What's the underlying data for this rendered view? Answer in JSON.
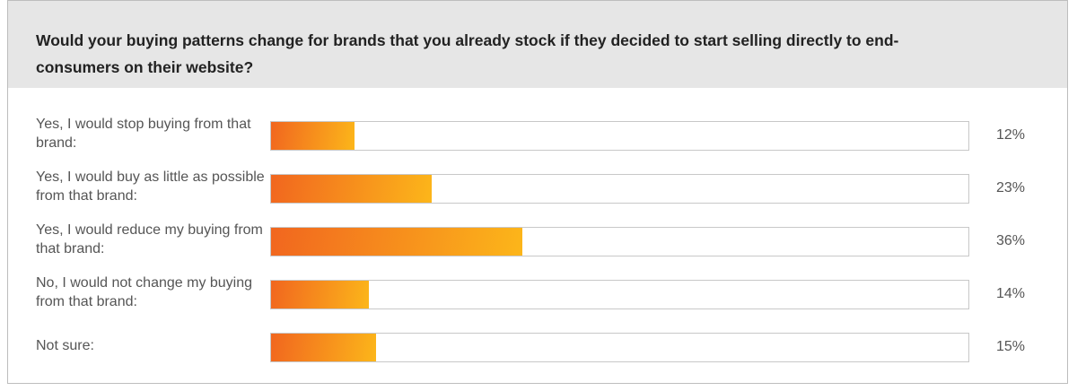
{
  "chart_data": {
    "type": "bar",
    "orientation": "horizontal",
    "title": "Would your buying patterns change for brands that you already stock if they decided to start selling directly to end-consumers on their website?",
    "categories": [
      "Yes, I would stop buying from that brand:",
      "Yes, I would buy as little as possible from that brand:",
      "Yes, I would reduce my buying from that brand:",
      "No, I would not change my buying from that brand:",
      "Not sure:"
    ],
    "values": [
      12,
      23,
      36,
      14,
      15
    ],
    "value_labels": [
      "12%",
      "23%",
      "36%",
      "14%",
      "15%"
    ],
    "xlim": [
      0,
      100
    ],
    "colors": [
      "#f1661f",
      "#fcb61a"
    ]
  }
}
